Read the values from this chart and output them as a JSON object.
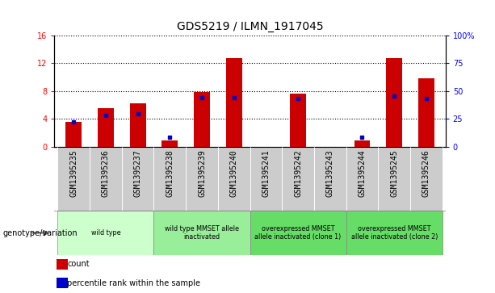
{
  "title": "GDS5219 / ILMN_1917045",
  "samples": [
    "GSM1395235",
    "GSM1395236",
    "GSM1395237",
    "GSM1395238",
    "GSM1395239",
    "GSM1395240",
    "GSM1395241",
    "GSM1395242",
    "GSM1395243",
    "GSM1395244",
    "GSM1395245",
    "GSM1395246"
  ],
  "counts": [
    3.5,
    5.5,
    6.2,
    0.9,
    7.8,
    12.7,
    0.0,
    7.6,
    0.0,
    0.9,
    12.7,
    9.8
  ],
  "percentile_ranks": [
    22,
    28,
    29,
    8,
    44,
    44,
    0,
    43,
    0,
    8,
    45,
    43
  ],
  "ylim_left": [
    0,
    16
  ],
  "ylim_right": [
    0,
    100
  ],
  "yticks_left": [
    0,
    4,
    8,
    12,
    16
  ],
  "yticks_right": [
    0,
    25,
    50,
    75,
    100
  ],
  "ytick_labels_right": [
    "0",
    "25",
    "50",
    "75",
    "100%"
  ],
  "bar_color": "#cc0000",
  "dot_color": "#0000cc",
  "grid_color": "#000000",
  "bg_color": "#ffffff",
  "sample_bg": "#cccccc",
  "groups": [
    {
      "label": "wild type",
      "start": 0,
      "end": 2,
      "color": "#ccffcc"
    },
    {
      "label": "wild type MMSET allele\ninactivated",
      "start": 3,
      "end": 5,
      "color": "#99ee99"
    },
    {
      "label": "overexpressed MMSET\nallele inactivated (clone 1)",
      "start": 6,
      "end": 8,
      "color": "#66dd66"
    },
    {
      "label": "overexpressed MMSET\nallele inactivated (clone 2)",
      "start": 9,
      "end": 11,
      "color": "#66dd66"
    }
  ],
  "legend_label_count": "count",
  "legend_label_pct": "percentile rank within the sample",
  "genotype_label": "genotype/variation",
  "tick_fontsize": 7,
  "title_fontsize": 10,
  "bar_width": 0.5
}
